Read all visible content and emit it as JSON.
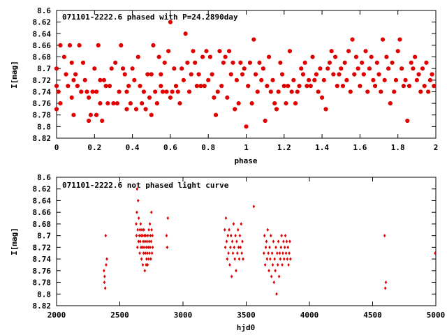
{
  "chart_data": [
    {
      "type": "scatter",
      "title": "071101-2222.6 phased with P=24.2890day",
      "xlabel": "phase",
      "ylabel": "I[mag]",
      "xlim": [
        0,
        2
      ],
      "ylim": [
        8.82,
        8.6
      ],
      "y_reversed": true,
      "x_ticks": [
        "0",
        "0.2",
        "0.4",
        "0.6",
        "0.8",
        "1",
        "1.2",
        "1.4",
        "1.6",
        "1.8",
        "2"
      ],
      "y_ticks": [
        "8.6",
        "8.62",
        "8.64",
        "8.66",
        "8.68",
        "8.7",
        "8.72",
        "8.74",
        "8.76",
        "8.78",
        "8.8",
        "8.82"
      ],
      "marker": "star",
      "color": "#e00000",
      "grid": false,
      "points": [
        [
          0.0,
          8.7
        ],
        [
          0.0,
          8.73
        ],
        [
          0.0,
          8.77
        ],
        [
          0.01,
          8.74
        ],
        [
          0.02,
          8.66
        ],
        [
          0.02,
          8.76
        ],
        [
          0.04,
          8.68
        ],
        [
          0.05,
          8.71
        ],
        [
          0.06,
          8.73
        ],
        [
          0.07,
          8.66
        ],
        [
          0.08,
          8.75
        ],
        [
          0.08,
          8.69
        ],
        [
          0.09,
          8.72
        ],
        [
          0.09,
          8.78
        ],
        [
          0.1,
          8.71
        ],
        [
          0.11,
          8.73
        ],
        [
          0.12,
          8.66
        ],
        [
          0.13,
          8.74
        ],
        [
          0.14,
          8.69
        ],
        [
          0.15,
          8.72
        ],
        [
          0.16,
          8.74
        ],
        [
          0.17,
          8.75
        ],
        [
          0.17,
          8.79
        ],
        [
          0.18,
          8.78
        ],
        [
          0.19,
          8.74
        ],
        [
          0.2,
          8.7
        ],
        [
          0.21,
          8.74
        ],
        [
          0.21,
          8.78
        ],
        [
          0.22,
          8.66
        ],
        [
          0.23,
          8.72
        ],
        [
          0.23,
          8.76
        ],
        [
          0.24,
          8.79
        ],
        [
          0.25,
          8.72
        ],
        [
          0.26,
          8.73
        ],
        [
          0.27,
          8.76
        ],
        [
          0.28,
          8.73
        ],
        [
          0.29,
          8.7
        ],
        [
          0.3,
          8.76
        ],
        [
          0.31,
          8.69
        ],
        [
          0.32,
          8.76
        ],
        [
          0.33,
          8.74
        ],
        [
          0.34,
          8.66
        ],
        [
          0.35,
          8.7
        ],
        [
          0.36,
          8.71
        ],
        [
          0.37,
          8.77
        ],
        [
          0.37,
          8.74
        ],
        [
          0.38,
          8.73
        ],
        [
          0.39,
          8.76
        ],
        [
          0.4,
          8.7
        ],
        [
          0.41,
          8.72
        ],
        [
          0.42,
          8.77
        ],
        [
          0.43,
          8.68
        ],
        [
          0.44,
          8.73
        ],
        [
          0.45,
          8.76
        ],
        [
          0.46,
          8.74
        ],
        [
          0.47,
          8.77
        ],
        [
          0.48,
          8.71
        ],
        [
          0.49,
          8.75
        ],
        [
          0.5,
          8.71
        ],
        [
          0.5,
          8.78
        ],
        [
          0.51,
          8.66
        ],
        [
          0.52,
          8.74
        ],
        [
          0.53,
          8.76
        ],
        [
          0.54,
          8.68
        ],
        [
          0.55,
          8.71
        ],
        [
          0.55,
          8.73
        ],
        [
          0.56,
          8.74
        ],
        [
          0.57,
          8.69
        ],
        [
          0.58,
          8.74
        ],
        [
          0.59,
          8.67
        ],
        [
          0.6,
          8.62
        ],
        [
          0.6,
          8.75
        ],
        [
          0.61,
          8.74
        ],
        [
          0.62,
          8.7
        ],
        [
          0.63,
          8.73
        ],
        [
          0.64,
          8.74
        ],
        [
          0.65,
          8.76
        ],
        [
          0.66,
          8.7
        ],
        [
          0.67,
          8.72
        ],
        [
          0.68,
          8.64
        ],
        [
          0.69,
          8.69
        ],
        [
          0.7,
          8.74
        ],
        [
          0.71,
          8.71
        ],
        [
          0.72,
          8.67
        ],
        [
          0.73,
          8.69
        ],
        [
          0.74,
          8.73
        ],
        [
          0.75,
          8.71
        ],
        [
          0.76,
          8.73
        ],
        [
          0.77,
          8.68
        ],
        [
          0.78,
          8.73
        ],
        [
          0.79,
          8.67
        ],
        [
          0.8,
          8.72
        ],
        [
          0.81,
          8.68
        ],
        [
          0.82,
          8.71
        ],
        [
          0.83,
          8.75
        ],
        [
          0.84,
          8.78
        ],
        [
          0.85,
          8.74
        ],
        [
          0.86,
          8.67
        ],
        [
          0.87,
          8.73
        ],
        [
          0.88,
          8.69
        ],
        [
          0.89,
          8.68
        ],
        [
          0.9,
          8.75
        ],
        [
          0.91,
          8.67
        ],
        [
          0.92,
          8.71
        ],
        [
          0.93,
          8.69
        ],
        [
          0.94,
          8.77
        ],
        [
          0.95,
          8.72
        ],
        [
          0.96,
          8.76
        ],
        [
          0.97,
          8.69
        ],
        [
          0.98,
          8.71
        ],
        [
          0.99,
          8.7
        ],
        [
          1.0,
          8.8
        ],
        [
          1.01,
          8.73
        ],
        [
          1.02,
          8.69
        ],
        [
          1.03,
          8.76
        ],
        [
          1.04,
          8.65
        ],
        [
          1.05,
          8.71
        ],
        [
          1.06,
          8.74
        ],
        [
          1.07,
          8.69
        ],
        [
          1.08,
          8.72
        ],
        [
          1.09,
          8.7
        ],
        [
          1.1,
          8.79
        ],
        [
          1.11,
          8.73
        ],
        [
          1.12,
          8.68
        ],
        [
          1.13,
          8.74
        ],
        [
          1.14,
          8.72
        ],
        [
          1.15,
          8.76
        ],
        [
          1.16,
          8.77
        ],
        [
          1.17,
          8.74
        ],
        [
          1.18,
          8.69
        ],
        [
          1.19,
          8.71
        ],
        [
          1.2,
          8.73
        ],
        [
          1.21,
          8.76
        ],
        [
          1.22,
          8.73
        ],
        [
          1.23,
          8.67
        ],
        [
          1.24,
          8.74
        ],
        [
          1.25,
          8.72
        ],
        [
          1.26,
          8.76
        ],
        [
          1.27,
          8.74
        ],
        [
          1.28,
          8.73
        ],
        [
          1.29,
          8.7
        ],
        [
          1.3,
          8.71
        ],
        [
          1.31,
          8.69
        ],
        [
          1.32,
          8.73
        ],
        [
          1.33,
          8.72
        ],
        [
          1.34,
          8.73
        ],
        [
          1.35,
          8.68
        ],
        [
          1.36,
          8.72
        ],
        [
          1.37,
          8.71
        ],
        [
          1.38,
          8.74
        ],
        [
          1.39,
          8.7
        ],
        [
          1.4,
          8.75
        ],
        [
          1.41,
          8.72
        ],
        [
          1.42,
          8.77
        ],
        [
          1.43,
          8.7
        ],
        [
          1.44,
          8.69
        ],
        [
          1.45,
          8.67
        ],
        [
          1.46,
          8.71
        ],
        [
          1.47,
          8.68
        ],
        [
          1.48,
          8.73
        ],
        [
          1.49,
          8.71
        ],
        [
          1.5,
          8.7
        ],
        [
          1.51,
          8.73
        ],
        [
          1.52,
          8.69
        ],
        [
          1.53,
          8.72
        ],
        [
          1.54,
          8.67
        ],
        [
          1.55,
          8.74
        ],
        [
          1.56,
          8.65
        ],
        [
          1.57,
          8.71
        ],
        [
          1.58,
          8.68
        ],
        [
          1.59,
          8.7
        ],
        [
          1.6,
          8.73
        ],
        [
          1.61,
          8.69
        ],
        [
          1.62,
          8.71
        ],
        [
          1.63,
          8.67
        ],
        [
          1.64,
          8.74
        ],
        [
          1.65,
          8.7
        ],
        [
          1.66,
          8.68
        ],
        [
          1.67,
          8.72
        ],
        [
          1.68,
          8.73
        ],
        [
          1.69,
          8.69
        ],
        [
          1.7,
          8.71
        ],
        [
          1.71,
          8.74
        ],
        [
          1.72,
          8.65
        ],
        [
          1.73,
          8.72
        ],
        [
          1.74,
          8.68
        ],
        [
          1.75,
          8.7
        ],
        [
          1.76,
          8.76
        ],
        [
          1.77,
          8.69
        ],
        [
          1.78,
          8.74
        ],
        [
          1.79,
          8.72
        ],
        [
          1.8,
          8.67
        ],
        [
          1.81,
          8.65
        ],
        [
          1.82,
          8.7
        ],
        [
          1.83,
          8.73
        ],
        [
          1.84,
          8.72
        ],
        [
          1.85,
          8.79
        ],
        [
          1.86,
          8.73
        ],
        [
          1.87,
          8.69
        ],
        [
          1.88,
          8.7
        ],
        [
          1.89,
          8.68
        ],
        [
          1.9,
          8.72
        ],
        [
          1.91,
          8.71
        ],
        [
          1.92,
          8.74
        ],
        [
          1.93,
          8.7
        ],
        [
          1.94,
          8.73
        ],
        [
          1.95,
          8.69
        ],
        [
          1.96,
          8.74
        ],
        [
          1.97,
          8.72
        ],
        [
          1.98,
          8.71
        ],
        [
          1.99,
          8.73
        ]
      ]
    },
    {
      "type": "scatter",
      "title": "071101-2222.6 not phased light curve",
      "xlabel": "hjd0",
      "ylabel": "I[mag]",
      "xlim": [
        2000,
        5000
      ],
      "ylim": [
        8.82,
        8.6
      ],
      "y_reversed": true,
      "x_ticks": [
        "2000",
        "2500",
        "3000",
        "3500",
        "4000",
        "4500",
        "5000"
      ],
      "y_ticks": [
        "8.6",
        "8.62",
        "8.64",
        "8.66",
        "8.68",
        "8.7",
        "8.72",
        "8.74",
        "8.76",
        "8.78",
        "8.8",
        "8.82"
      ],
      "marker": "diamond",
      "color": "#e00000",
      "grid": false,
      "points": [
        [
          2375,
          8.76
        ],
        [
          2378,
          8.78
        ],
        [
          2380,
          8.77
        ],
        [
          2385,
          8.79
        ],
        [
          2388,
          8.7
        ],
        [
          2392,
          8.75
        ],
        [
          2398,
          8.74
        ],
        [
          2630,
          8.68
        ],
        [
          2632,
          8.7
        ],
        [
          2635,
          8.66
        ],
        [
          2637,
          8.62
        ],
        [
          2640,
          8.72
        ],
        [
          2642,
          8.69
        ],
        [
          2645,
          8.64
        ],
        [
          2648,
          8.71
        ],
        [
          2650,
          8.67
        ],
        [
          2655,
          8.7
        ],
        [
          2658,
          8.73
        ],
        [
          2660,
          8.69
        ],
        [
          2662,
          8.71
        ],
        [
          2665,
          8.68
        ],
        [
          2668,
          8.72
        ],
        [
          2670,
          8.7
        ],
        [
          2672,
          8.74
        ],
        [
          2675,
          8.69
        ],
        [
          2678,
          8.72
        ],
        [
          2680,
          8.7
        ],
        [
          2682,
          8.75
        ],
        [
          2685,
          8.71
        ],
        [
          2688,
          8.73
        ],
        [
          2690,
          8.69
        ],
        [
          2692,
          8.72
        ],
        [
          2695,
          8.7
        ],
        [
          2698,
          8.76
        ],
        [
          2700,
          8.71
        ],
        [
          2702,
          8.73
        ],
        [
          2705,
          8.7
        ],
        [
          2708,
          8.75
        ],
        [
          2710,
          8.72
        ],
        [
          2712,
          8.74
        ],
        [
          2715,
          8.71
        ],
        [
          2718,
          8.73
        ],
        [
          2720,
          8.75
        ],
        [
          2722,
          8.7
        ],
        [
          2725,
          8.72
        ],
        [
          2728,
          8.74
        ],
        [
          2730,
          8.69
        ],
        [
          2732,
          8.71
        ],
        [
          2735,
          8.73
        ],
        [
          2738,
          8.68
        ],
        [
          2740,
          8.72
        ],
        [
          2742,
          8.7
        ],
        [
          2745,
          8.74
        ],
        [
          2748,
          8.71
        ],
        [
          2750,
          8.66
        ],
        [
          2752,
          8.69
        ],
        [
          2755,
          8.73
        ],
        [
          2758,
          8.7
        ],
        [
          2760,
          8.72
        ],
        [
          2870,
          8.7
        ],
        [
          2875,
          8.72
        ],
        [
          2880,
          8.67
        ],
        [
          3330,
          8.69
        ],
        [
          3335,
          8.72
        ],
        [
          3340,
          8.67
        ],
        [
          3345,
          8.71
        ],
        [
          3350,
          8.74
        ],
        [
          3355,
          8.7
        ],
        [
          3360,
          8.73
        ],
        [
          3365,
          8.69
        ],
        [
          3370,
          8.75
        ],
        [
          3375,
          8.72
        ],
        [
          3380,
          8.7
        ],
        [
          3385,
          8.77
        ],
        [
          3390,
          8.71
        ],
        [
          3395,
          8.73
        ],
        [
          3400,
          8.68
        ],
        [
          3405,
          8.72
        ],
        [
          3410,
          8.74
        ],
        [
          3415,
          8.7
        ],
        [
          3420,
          8.76
        ],
        [
          3425,
          8.71
        ],
        [
          3430,
          8.73
        ],
        [
          3435,
          8.69
        ],
        [
          3440,
          8.72
        ],
        [
          3445,
          8.74
        ],
        [
          3450,
          8.7
        ],
        [
          3455,
          8.72
        ],
        [
          3460,
          8.68
        ],
        [
          3465,
          8.73
        ],
        [
          3470,
          8.71
        ],
        [
          3475,
          8.74
        ],
        [
          3560,
          8.65
        ],
        [
          3640,
          8.73
        ],
        [
          3645,
          8.7
        ],
        [
          3650,
          8.75
        ],
        [
          3655,
          8.72
        ],
        [
          3660,
          8.71
        ],
        [
          3665,
          8.74
        ],
        [
          3670,
          8.69
        ],
        [
          3675,
          8.73
        ],
        [
          3680,
          8.76
        ],
        [
          3685,
          8.72
        ],
        [
          3690,
          8.74
        ],
        [
          3695,
          8.7
        ],
        [
          3700,
          8.77
        ],
        [
          3705,
          8.73
        ],
        [
          3710,
          8.75
        ],
        [
          3715,
          8.71
        ],
        [
          3720,
          8.78
        ],
        [
          3725,
          8.74
        ],
        [
          3730,
          8.76
        ],
        [
          3735,
          8.72
        ],
        [
          3740,
          8.8
        ],
        [
          3745,
          8.73
        ],
        [
          3750,
          8.75
        ],
        [
          3755,
          8.71
        ],
        [
          3760,
          8.77
        ],
        [
          3765,
          8.73
        ],
        [
          3770,
          8.74
        ],
        [
          3775,
          8.72
        ],
        [
          3780,
          8.7
        ],
        [
          3785,
          8.75
        ],
        [
          3790,
          8.73
        ],
        [
          3795,
          8.71
        ],
        [
          3800,
          8.74
        ],
        [
          3805,
          8.72
        ],
        [
          3810,
          8.7
        ],
        [
          3815,
          8.73
        ],
        [
          3820,
          8.71
        ],
        [
          3825,
          8.74
        ],
        [
          3830,
          8.72
        ],
        [
          3835,
          8.75
        ],
        [
          3840,
          8.73
        ],
        [
          3845,
          8.71
        ],
        [
          3850,
          8.74
        ],
        [
          4595,
          8.7
        ],
        [
          4600,
          8.79
        ],
        [
          4605,
          8.78
        ],
        [
          4995,
          8.73
        ]
      ]
    }
  ]
}
